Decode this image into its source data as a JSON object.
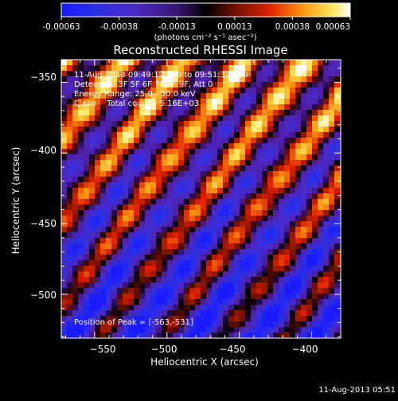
{
  "colorbar": {
    "ticks": [
      "-0.00063",
      "-0.00038",
      "-0.00013",
      "0.00013",
      "0.00038",
      "0.00063"
    ],
    "unit_label": "(photons cm⁻² s⁻¹ asec⁻²)",
    "range": [
      -0.00063,
      0.00063
    ]
  },
  "chart_data": {
    "type": "heatmap",
    "title": "Reconstructed RHESSI Image",
    "xlabel": "Heliocentric X (arcsec)",
    "ylabel": "Heliocentric Y (arcsec)",
    "xlim": [
      -573,
      -380
    ],
    "ylim": [
      -531,
      -334
    ],
    "x_ticks": [
      -550,
      -500,
      -450,
      -400
    ],
    "y_ticks": [
      -350,
      -400,
      -450,
      -500
    ],
    "x_tick_labels": [
      "−550",
      "−500",
      "−450",
      "−400"
    ],
    "y_tick_labels": [
      "−350",
      "−400",
      "−450",
      "−500"
    ],
    "annotations": [
      "11-Aug-2013 09:49:12.000 to 09:51:32.000",
      "Detectors: 3F 5F 6F 7F 8F 9F, Att 0",
      "Energy Range: 25.0 - 50.0 keV",
      "Clean    Total counts: 5.16E+03"
    ],
    "peak_label": "Position of Peak = [-563,-531]",
    "peak_position": [
      -563,
      -531
    ],
    "colormap": "rainbow-purple-hot"
  },
  "timestamp": "11-Aug-2013 05:51"
}
